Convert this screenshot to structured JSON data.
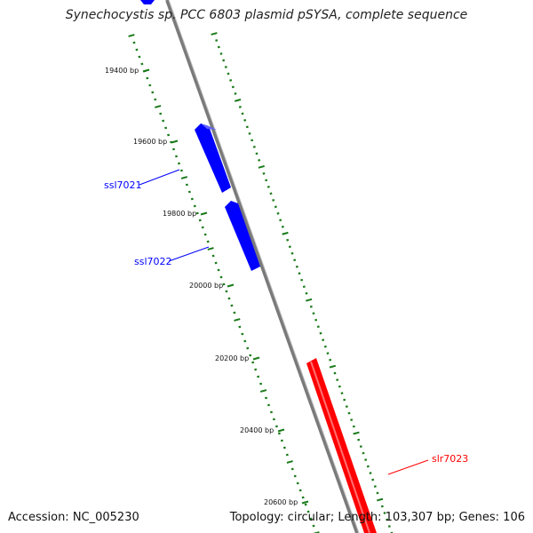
{
  "title": "Synechocystis sp. PCC 6803 plasmid pSYSA, complete sequence",
  "accession": "Accession: NC_005230",
  "summary": "Topology: circular; Length: 103,307 bp; Genes: 106",
  "colors": {
    "backbone": "#7a7a7a",
    "tick": "#1a7a1a",
    "forward_gene": "#0000ff",
    "reverse_gene": "#ff0000"
  },
  "ticks": [
    {
      "position": 19400,
      "label": "19400 bp"
    },
    {
      "position": 19600,
      "label": "19600 bp"
    },
    {
      "position": 19800,
      "label": "19800 bp"
    },
    {
      "position": 20000,
      "label": "20000 bp"
    },
    {
      "position": 20200,
      "label": "20200 bp"
    },
    {
      "position": 20400,
      "label": "20400 bp"
    },
    {
      "position": 20600,
      "label": "20600 bp"
    }
  ],
  "genes": [
    {
      "name": "ssl7021",
      "strand": "forward"
    },
    {
      "name": "ssl7022",
      "strand": "forward"
    },
    {
      "name": "slr7023",
      "strand": "reverse"
    }
  ]
}
